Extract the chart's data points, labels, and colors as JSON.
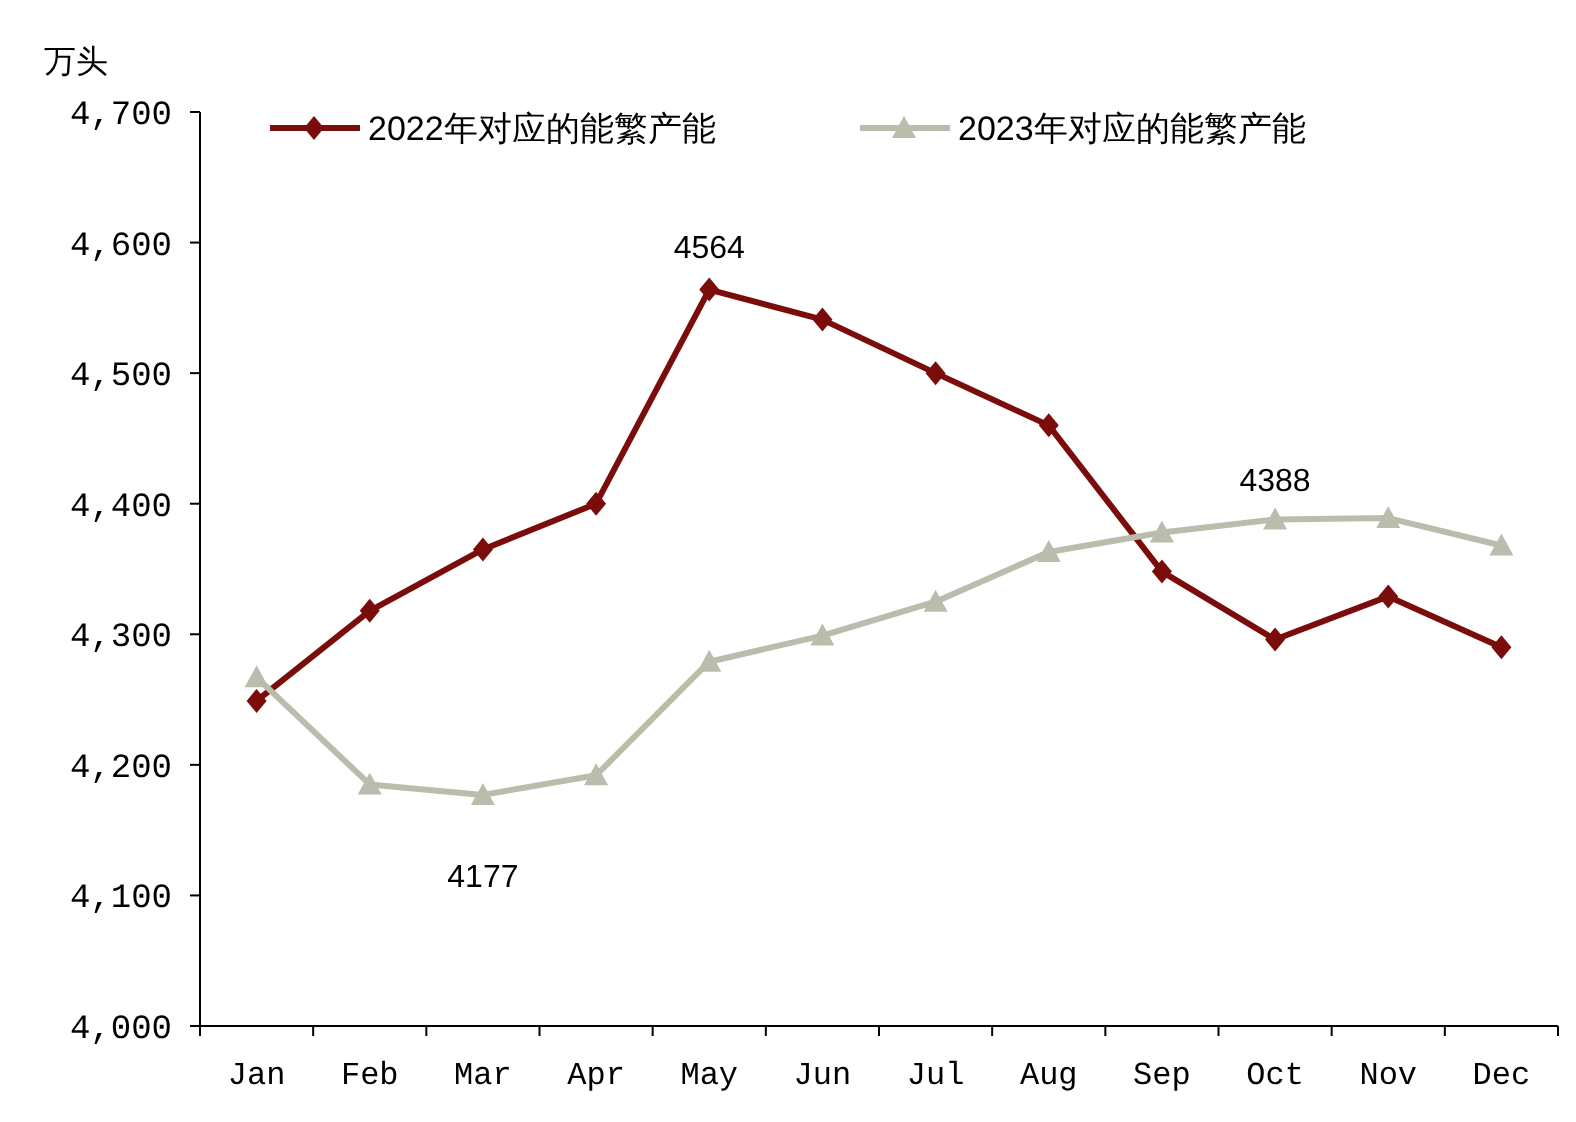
{
  "chart_data": {
    "type": "line",
    "ylabel": "万头",
    "categories": [
      "Jan",
      "Feb",
      "Mar",
      "Apr",
      "May",
      "Jun",
      "Jul",
      "Aug",
      "Sep",
      "Oct",
      "Nov",
      "Dec"
    ],
    "series": [
      {
        "name": "2022年对应的能繁产能",
        "color": "#7b0c0c",
        "marker": "diamond",
        "values": [
          4249,
          4318,
          4365,
          4400,
          4564,
          4541,
          4500,
          4460,
          4348,
          4296,
          4329,
          4290
        ]
      },
      {
        "name": "2023年对应的能繁产能",
        "color": "#bcbcac",
        "marker": "triangle",
        "values": [
          4267,
          4185,
          4177,
          4192,
          4279,
          4299,
          4325,
          4363,
          4378,
          4388,
          4389,
          4368
        ]
      }
    ],
    "ylim": [
      4000,
      4700
    ],
    "yticks": [
      {
        "value": 4000,
        "label": "4,000"
      },
      {
        "value": 4100,
        "label": "4,100"
      },
      {
        "value": 4200,
        "label": "4,200"
      },
      {
        "value": 4300,
        "label": "4,300"
      },
      {
        "value": 4400,
        "label": "4,400"
      },
      {
        "value": 4500,
        "label": "4,500"
      },
      {
        "value": 4600,
        "label": "4,600"
      },
      {
        "value": 4700,
        "label": "4,700"
      }
    ],
    "grid": false,
    "legend": "top",
    "annotations": [
      {
        "text": "4564",
        "x": "May",
        "y": 4564
      },
      {
        "text": "4177",
        "x": "Mar",
        "y": 4177
      },
      {
        "text": "4388",
        "x": "Oct",
        "y": 4388
      }
    ]
  }
}
